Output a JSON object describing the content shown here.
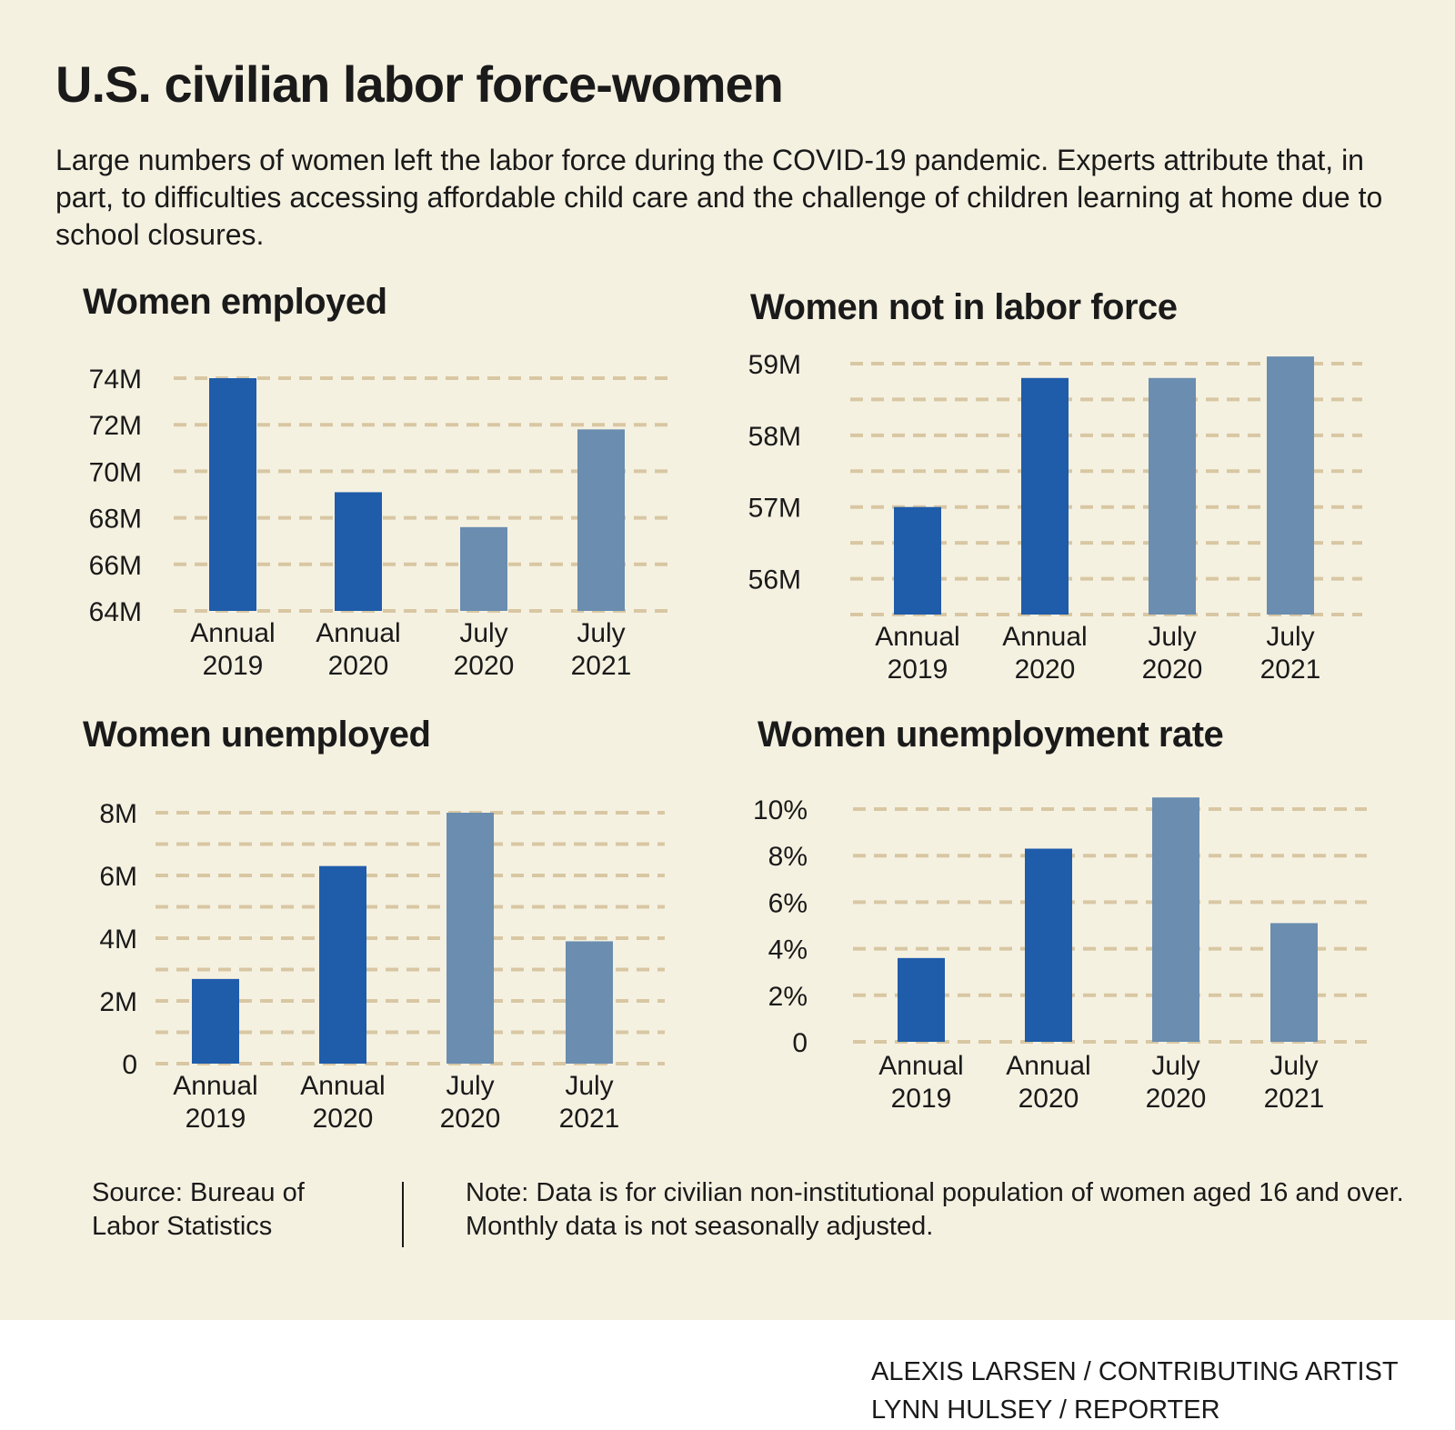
{
  "title": "U.S. civilian labor force-women",
  "subtitle": "Large numbers of women left the labor force during the COVID-19 pandemic. Experts attribute that, in part, to difficulties accessing affordable child care and the challenge of children learning at home due to school closures.",
  "source": "Source: Bureau of Labor Statistics",
  "note": "Note: Data is for civilian non-institutional population of women aged 16 and over. Monthly data is not seasonally adjusted.",
  "credits": [
    "ALEXIS LARSEN / CONTRIBUTING ARTIST",
    "LYNN HULSEY / REPORTER"
  ],
  "colors": {
    "background": "#f5f1e1",
    "annual_bar": "#1f5caa",
    "july_bar": "#6a8db0",
    "gridline": "#d8c7a3"
  },
  "chart_data": [
    {
      "type": "bar",
      "title": "Women employed",
      "categories": [
        [
          "Annual",
          "2019"
        ],
        [
          "Annual",
          "2020"
        ],
        [
          "July",
          "2020"
        ],
        [
          "July",
          "2021"
        ]
      ],
      "values": [
        74.0,
        69.1,
        67.6,
        71.8
      ],
      "unit": "M",
      "ylim": [
        64,
        74
      ],
      "yticks": [
        64,
        66,
        68,
        70,
        72,
        74
      ],
      "ytick_labels": [
        "64M",
        "66M",
        "68M",
        "70M",
        "72M",
        "74M"
      ],
      "bar_colors": [
        "annual",
        "annual",
        "july",
        "july"
      ],
      "grid": true
    },
    {
      "type": "bar",
      "title": "Women not in labor force",
      "categories": [
        [
          "Annual",
          "2019"
        ],
        [
          "Annual",
          "2020"
        ],
        [
          "July",
          "2020"
        ],
        [
          "July",
          "2021"
        ]
      ],
      "values": [
        57.0,
        58.8,
        58.8,
        59.1
      ],
      "unit": "M",
      "ylim": [
        55.5,
        59
      ],
      "yticks": [
        56,
        57,
        58,
        59
      ],
      "ytick_labels": [
        "56M",
        "57M",
        "58M",
        "59M"
      ],
      "bar_colors": [
        "annual",
        "annual",
        "july",
        "july"
      ],
      "grid": true
    },
    {
      "type": "bar",
      "title": "Women unemployed",
      "categories": [
        [
          "Annual",
          "2019"
        ],
        [
          "Annual",
          "2020"
        ],
        [
          "July",
          "2020"
        ],
        [
          "July",
          "2021"
        ]
      ],
      "values": [
        2.7,
        6.3,
        8.0,
        3.9
      ],
      "unit": "M",
      "ylim": [
        0,
        8
      ],
      "yticks": [
        0,
        2,
        4,
        6,
        8
      ],
      "ytick_labels": [
        "0",
        "2M",
        "4M",
        "6M",
        "8M"
      ],
      "bar_colors": [
        "annual",
        "annual",
        "july",
        "july"
      ],
      "grid": true
    },
    {
      "type": "bar",
      "title": "Women unemployment rate",
      "categories": [
        [
          "Annual",
          "2019"
        ],
        [
          "Annual",
          "2020"
        ],
        [
          "July",
          "2020"
        ],
        [
          "July",
          "2021"
        ]
      ],
      "values": [
        3.6,
        8.3,
        10.5,
        5.1
      ],
      "unit": "%",
      "ylim": [
        0,
        10
      ],
      "yticks": [
        0,
        2,
        4,
        6,
        8,
        10
      ],
      "ytick_labels": [
        "0",
        "2%",
        "4%",
        "6%",
        "8%",
        "10%"
      ],
      "bar_colors": [
        "annual",
        "annual",
        "july",
        "july"
      ],
      "grid": true
    }
  ]
}
